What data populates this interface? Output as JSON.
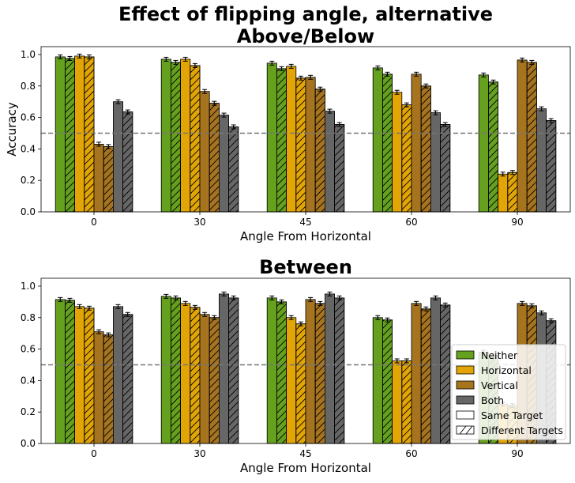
{
  "chart_data": [
    {
      "type": "bar",
      "title": "Effect of flipping angle, alternative\nAbove/Below",
      "xlabel": "Angle From Horizontal",
      "ylabel": "Accuracy",
      "categories": [
        "0",
        "30",
        "45",
        "60",
        "90"
      ],
      "ylim": [
        0,
        1.05
      ],
      "yticks": [
        "0.0",
        "0.2",
        "0.4",
        "0.6",
        "0.8",
        "1.0"
      ],
      "reference_line": 0.5,
      "series": [
        {
          "group": "Neither",
          "hatch": "none",
          "values": [
            0.985,
            0.97,
            0.945,
            0.915,
            0.87
          ]
        },
        {
          "group": "Neither",
          "hatch": "diagonal",
          "values": [
            0.975,
            0.95,
            0.91,
            0.875,
            0.825
          ]
        },
        {
          "group": "Horizontal",
          "hatch": "none",
          "values": [
            0.99,
            0.97,
            0.925,
            0.76,
            0.24
          ]
        },
        {
          "group": "Horizontal",
          "hatch": "diagonal",
          "values": [
            0.985,
            0.93,
            0.85,
            0.68,
            0.25
          ]
        },
        {
          "group": "Vertical",
          "hatch": "none",
          "values": [
            0.43,
            0.765,
            0.855,
            0.875,
            0.965
          ]
        },
        {
          "group": "Vertical",
          "hatch": "diagonal",
          "values": [
            0.415,
            0.69,
            0.78,
            0.8,
            0.95
          ]
        },
        {
          "group": "Both",
          "hatch": "none",
          "values": [
            0.7,
            0.615,
            0.64,
            0.63,
            0.655
          ]
        },
        {
          "group": "Both",
          "hatch": "diagonal",
          "values": [
            0.635,
            0.54,
            0.555,
            0.555,
            0.58
          ]
        }
      ]
    },
    {
      "type": "bar",
      "title": "Between",
      "xlabel": "Angle From Horizontal",
      "ylabel": "",
      "categories": [
        "0",
        "30",
        "45",
        "60",
        "90"
      ],
      "ylim": [
        0,
        1.05
      ],
      "yticks": [
        "0.0",
        "0.2",
        "0.4",
        "0.6",
        "0.8",
        "1.0"
      ],
      "reference_line": 0.5,
      "series": [
        {
          "group": "Neither",
          "hatch": "none",
          "values": [
            0.915,
            0.935,
            0.925,
            0.8,
            0.58
          ]
        },
        {
          "group": "Neither",
          "hatch": "diagonal",
          "values": [
            0.91,
            0.925,
            0.9,
            0.785,
            0.56
          ]
        },
        {
          "group": "Horizontal",
          "hatch": "none",
          "values": [
            0.87,
            0.89,
            0.8,
            0.525,
            0.25
          ]
        },
        {
          "group": "Horizontal",
          "hatch": "diagonal",
          "values": [
            0.86,
            0.865,
            0.76,
            0.525,
            0.24
          ]
        },
        {
          "group": "Vertical",
          "hatch": "none",
          "values": [
            0.71,
            0.82,
            0.915,
            0.89,
            0.89
          ]
        },
        {
          "group": "Vertical",
          "hatch": "diagonal",
          "values": [
            0.69,
            0.8,
            0.89,
            0.855,
            0.875
          ]
        },
        {
          "group": "Both",
          "hatch": "none",
          "values": [
            0.87,
            0.95,
            0.95,
            0.925,
            0.83
          ]
        },
        {
          "group": "Both",
          "hatch": "diagonal",
          "values": [
            0.82,
            0.925,
            0.925,
            0.88,
            0.78
          ]
        }
      ],
      "legend": {
        "placement": "bottom-right",
        "entries": [
          {
            "label": "Neither",
            "color": "#65a01f",
            "hatch": "none"
          },
          {
            "label": "Horizontal",
            "color": "#e2a505",
            "hatch": "none"
          },
          {
            "label": "Vertical",
            "color": "#a6741f",
            "hatch": "none"
          },
          {
            "label": "Both",
            "color": "#666666",
            "hatch": "none"
          },
          {
            "label": "Same Target",
            "color": "#ffffff",
            "hatch": "none"
          },
          {
            "label": "Different Targets",
            "color": "#ffffff",
            "hatch": "diagonal"
          }
        ]
      }
    }
  ],
  "colors": {
    "Neither": "#65a01f",
    "Horizontal": "#e2a505",
    "Vertical": "#a6741f",
    "Both": "#666666",
    "reference_line": "#777777"
  }
}
